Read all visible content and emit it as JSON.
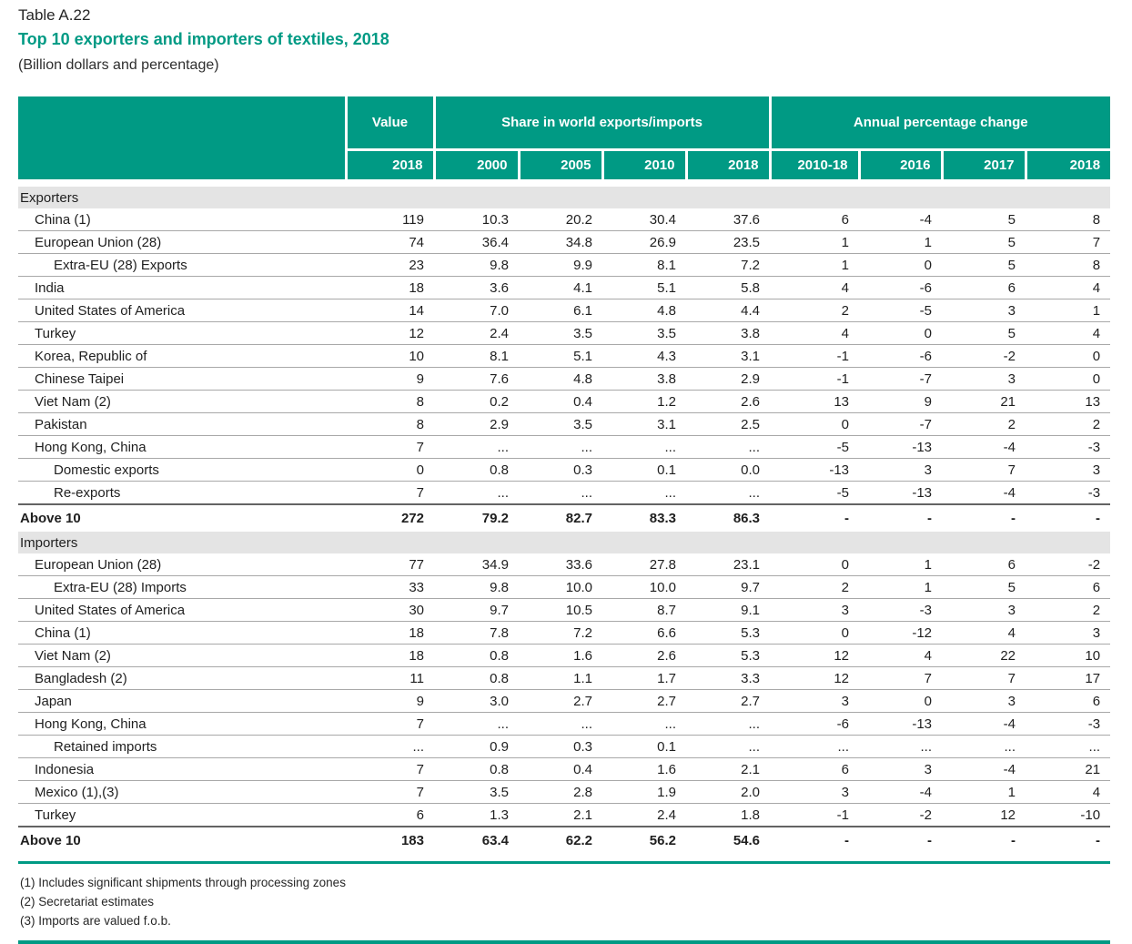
{
  "page": {
    "table_number": "Table A.22",
    "title": "Top 10 exporters and importers of textiles, 2018",
    "subtitle": "(Billion dollars and percentage)"
  },
  "colors": {
    "accent": "#009A84",
    "section_bg": "#E4E4E4",
    "row_border": "#A8A8A8",
    "total_border": "#636363",
    "text": "#1F1F1F",
    "header_text": "#FFFFFF"
  },
  "table": {
    "column_groups": [
      {
        "label": "Value",
        "span": 1
      },
      {
        "label": "Share in world exports/imports",
        "span": 4
      },
      {
        "label": "Annual percentage change",
        "span": 4
      }
    ],
    "columns": [
      "2018",
      "2000",
      "2005",
      "2010",
      "2018",
      "2010-18",
      "2016",
      "2017",
      "2018"
    ],
    "sections": [
      {
        "label": "Exporters",
        "rows": [
          {
            "name": "China (1)",
            "indent": 0,
            "values": [
              "119",
              "10.3",
              "20.2",
              "30.4",
              "37.6",
              "6",
              "-4",
              "5",
              "8"
            ]
          },
          {
            "name": "European Union (28)",
            "indent": 0,
            "values": [
              "74",
              "36.4",
              "34.8",
              "26.9",
              "23.5",
              "1",
              "1",
              "5",
              "7"
            ]
          },
          {
            "name": "Extra-EU (28) Exports",
            "indent": 1,
            "values": [
              "23",
              "9.8",
              "9.9",
              "8.1",
              "7.2",
              "1",
              "0",
              "5",
              "8"
            ]
          },
          {
            "name": "India",
            "indent": 0,
            "values": [
              "18",
              "3.6",
              "4.1",
              "5.1",
              "5.8",
              "4",
              "-6",
              "6",
              "4"
            ]
          },
          {
            "name": "United States of America",
            "indent": 0,
            "values": [
              "14",
              "7.0",
              "6.1",
              "4.8",
              "4.4",
              "2",
              "-5",
              "3",
              "1"
            ]
          },
          {
            "name": "Turkey",
            "indent": 0,
            "values": [
              "12",
              "2.4",
              "3.5",
              "3.5",
              "3.8",
              "4",
              "0",
              "5",
              "4"
            ]
          },
          {
            "name": "Korea, Republic of",
            "indent": 0,
            "values": [
              "10",
              "8.1",
              "5.1",
              "4.3",
              "3.1",
              "-1",
              "-6",
              "-2",
              "0"
            ]
          },
          {
            "name": "Chinese Taipei",
            "indent": 0,
            "values": [
              "9",
              "7.6",
              "4.8",
              "3.8",
              "2.9",
              "-1",
              "-7",
              "3",
              "0"
            ]
          },
          {
            "name": "Viet Nam (2)",
            "indent": 0,
            "values": [
              "8",
              "0.2",
              "0.4",
              "1.2",
              "2.6",
              "13",
              "9",
              "21",
              "13"
            ]
          },
          {
            "name": "Pakistan",
            "indent": 0,
            "values": [
              "8",
              "2.9",
              "3.5",
              "3.1",
              "2.5",
              "0",
              "-7",
              "2",
              "2"
            ]
          },
          {
            "name": "Hong Kong, China",
            "indent": 0,
            "values": [
              "7",
              "...",
              "...",
              "...",
              "...",
              "-5",
              "-13",
              "-4",
              "-3"
            ]
          },
          {
            "name": "Domestic exports",
            "indent": 1,
            "values": [
              "0",
              "0.8",
              "0.3",
              "0.1",
              "0.0",
              "-13",
              "3",
              "7",
              "3"
            ]
          },
          {
            "name": "Re-exports",
            "indent": 1,
            "values": [
              "7",
              "...",
              "...",
              "...",
              "...",
              "-5",
              "-13",
              "-4",
              "-3"
            ]
          }
        ],
        "total": {
          "name": "Above 10",
          "values": [
            "272",
            "79.2",
            "82.7",
            "83.3",
            "86.3",
            "-",
            "-",
            "-",
            "-"
          ]
        }
      },
      {
        "label": "Importers",
        "rows": [
          {
            "name": "European Union (28)",
            "indent": 0,
            "values": [
              "77",
              "34.9",
              "33.6",
              "27.8",
              "23.1",
              "0",
              "1",
              "6",
              "-2"
            ]
          },
          {
            "name": "Extra-EU (28) Imports",
            "indent": 1,
            "values": [
              "33",
              "9.8",
              "10.0",
              "10.0",
              "9.7",
              "2",
              "1",
              "5",
              "6"
            ]
          },
          {
            "name": "United States of America",
            "indent": 0,
            "values": [
              "30",
              "9.7",
              "10.5",
              "8.7",
              "9.1",
              "3",
              "-3",
              "3",
              "2"
            ]
          },
          {
            "name": "China (1)",
            "indent": 0,
            "values": [
              "18",
              "7.8",
              "7.2",
              "6.6",
              "5.3",
              "0",
              "-12",
              "4",
              "3"
            ]
          },
          {
            "name": "Viet Nam (2)",
            "indent": 0,
            "values": [
              "18",
              "0.8",
              "1.6",
              "2.6",
              "5.3",
              "12",
              "4",
              "22",
              "10"
            ]
          },
          {
            "name": "Bangladesh (2)",
            "indent": 0,
            "values": [
              "11",
              "0.8",
              "1.1",
              "1.7",
              "3.3",
              "12",
              "7",
              "7",
              "17"
            ]
          },
          {
            "name": "Japan",
            "indent": 0,
            "values": [
              "9",
              "3.0",
              "2.7",
              "2.7",
              "2.7",
              "3",
              "0",
              "3",
              "6"
            ]
          },
          {
            "name": "Hong Kong, China",
            "indent": 0,
            "values": [
              "7",
              "...",
              "...",
              "...",
              "...",
              "-6",
              "-13",
              "-4",
              "-3"
            ]
          },
          {
            "name": "Retained imports",
            "indent": 1,
            "values": [
              "...",
              "0.9",
              "0.3",
              "0.1",
              "...",
              "...",
              "...",
              "...",
              "..."
            ]
          },
          {
            "name": "Indonesia",
            "indent": 0,
            "values": [
              "7",
              "0.8",
              "0.4",
              "1.6",
              "2.1",
              "6",
              "3",
              "-4",
              "21"
            ]
          },
          {
            "name": "Mexico (1),(3)",
            "indent": 0,
            "values": [
              "7",
              "3.5",
              "2.8",
              "1.9",
              "2.0",
              "3",
              "-4",
              "1",
              "4"
            ]
          },
          {
            "name": "Turkey",
            "indent": 0,
            "values": [
              "6",
              "1.3",
              "2.1",
              "2.4",
              "1.8",
              "-1",
              "-2",
              "12",
              "-10"
            ]
          }
        ],
        "total": {
          "name": "Above 10",
          "values": [
            "183",
            "63.4",
            "62.2",
            "56.2",
            "54.6",
            "-",
            "-",
            "-",
            "-"
          ]
        }
      }
    ]
  },
  "footnotes": [
    "(1) Includes significant shipments through processing zones",
    "(2) Secretariat estimates",
    "(3) Imports are valued f.o.b."
  ]
}
